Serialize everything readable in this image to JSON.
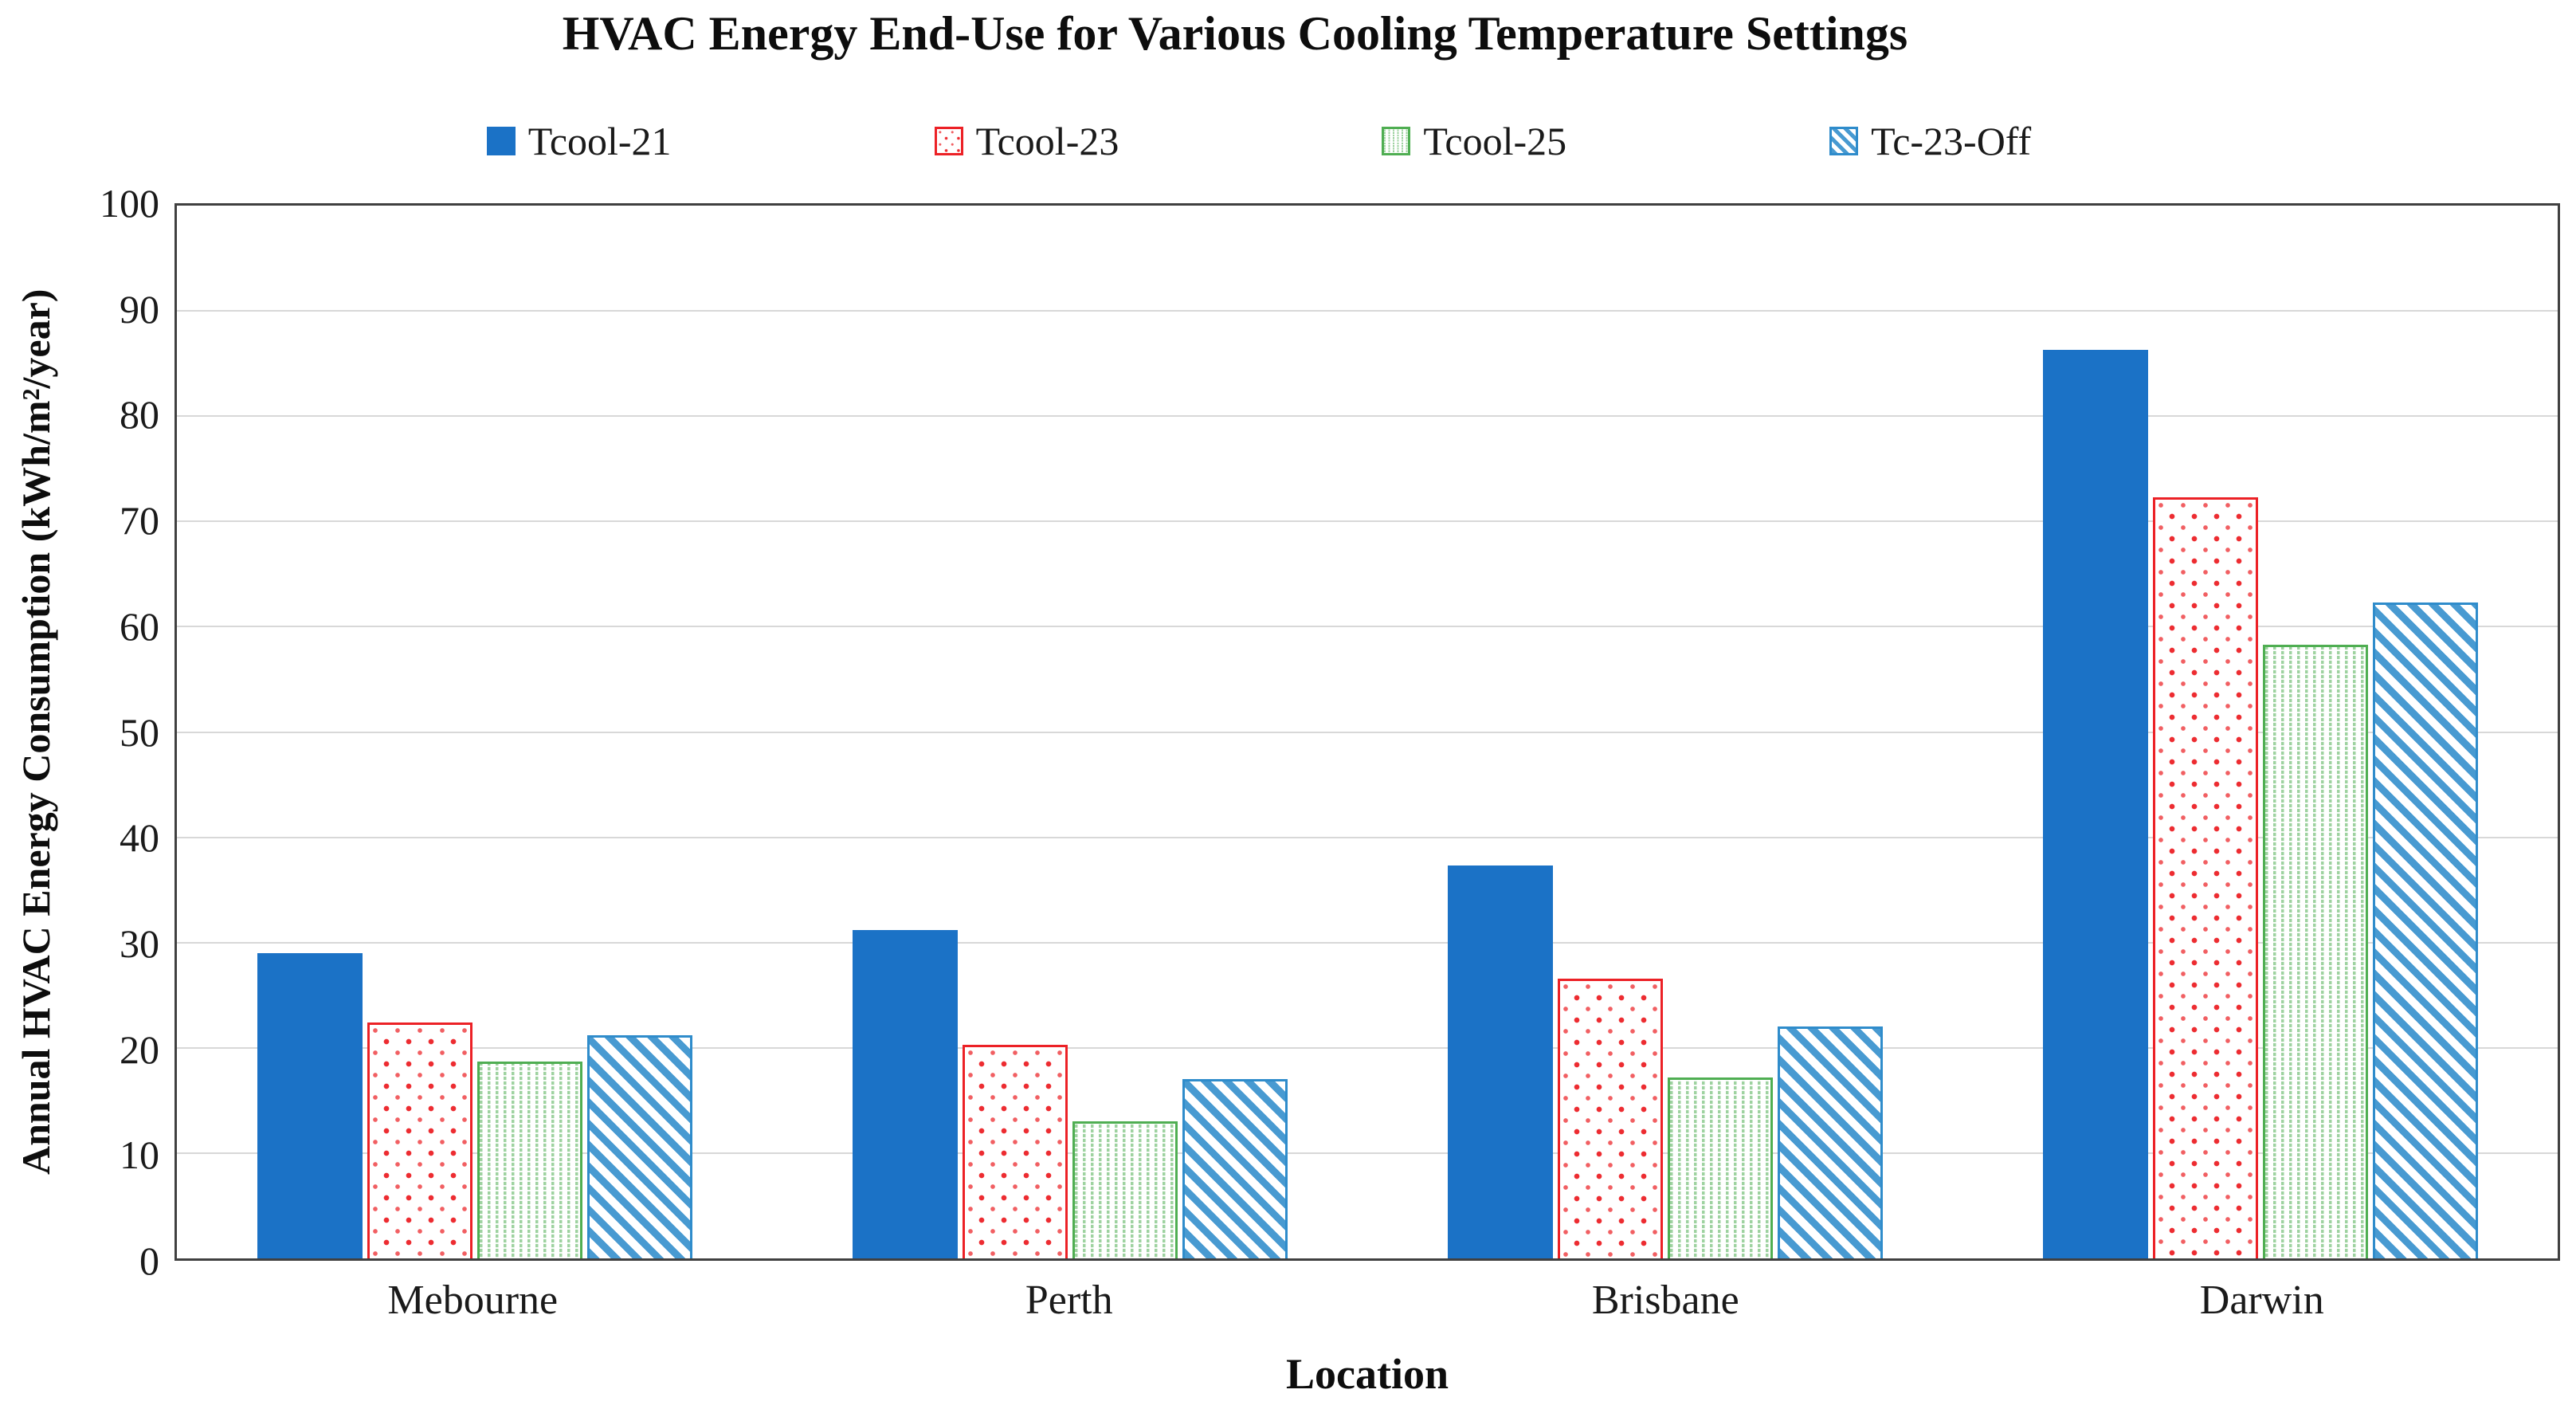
{
  "chart_data": {
    "type": "bar",
    "title": "HVAC Energy End-Use for Various Cooling Temperature Settings",
    "xlabel": "Location",
    "ylabel": "Annual HVAC Energy Consumption (kWh/m²/year)",
    "categories": [
      "Mebourne",
      "Perth",
      "Brisbane",
      "Darwin"
    ],
    "series": [
      {
        "name": "Tcool-21",
        "pattern": "solid",
        "color": "#1B72C6",
        "values": [
          29.0,
          31.2,
          37.3,
          86.3
        ]
      },
      {
        "name": "Tcool-23",
        "pattern": "dots",
        "color": "#EC2126",
        "values": [
          22.4,
          20.3,
          26.6,
          72.3
        ]
      },
      {
        "name": "Tcool-25",
        "pattern": "vlines",
        "color": "#4FAE52",
        "values": [
          18.7,
          13.0,
          17.2,
          58.3
        ]
      },
      {
        "name": "Tc-23-Off",
        "pattern": "diagonal",
        "color": "#2F8CCB",
        "values": [
          21.2,
          17.0,
          22.0,
          62.3
        ]
      }
    ],
    "ylim": [
      0,
      100
    ],
    "ytick_step": 10,
    "yticks": [
      0,
      10,
      20,
      30,
      40,
      50,
      60,
      70,
      80,
      90,
      100
    ],
    "grid": true,
    "legend_position": "top",
    "gridline_color": "#D8D8D8",
    "axis_border_color": "#404040"
  }
}
